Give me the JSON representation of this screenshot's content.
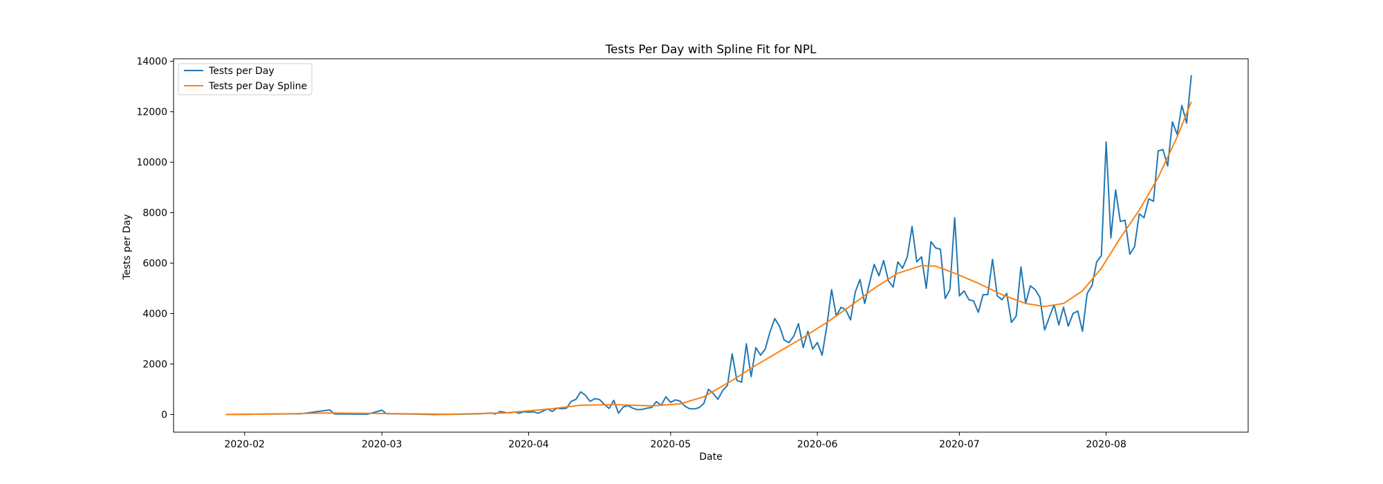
{
  "chart_data": {
    "type": "line",
    "title": "Tests Per Day with Spline Fit for NPL",
    "xlabel": "Date",
    "ylabel": "Tests per Day",
    "x_axis_type": "date",
    "xlim": [
      "2020-01-17",
      "2020-08-31"
    ],
    "ylim": [
      -700,
      14100
    ],
    "x_ticks": [
      "2020-02",
      "2020-03",
      "2020-04",
      "2020-05",
      "2020-06",
      "2020-07",
      "2020-08"
    ],
    "y_ticks": [
      0,
      2000,
      4000,
      6000,
      8000,
      10000,
      12000,
      14000
    ],
    "grid": false,
    "legend": {
      "position": "top-left"
    },
    "series": [
      {
        "name": "Tests per Day",
        "color": "#1f77b4",
        "points": [
          [
            "2020-01-28",
            0
          ],
          [
            "2020-02-13",
            30
          ],
          [
            "2020-02-19",
            180
          ],
          [
            "2020-02-20",
            20
          ],
          [
            "2020-02-27",
            10
          ],
          [
            "2020-03-01",
            170
          ],
          [
            "2020-03-02",
            30
          ],
          [
            "2020-03-07",
            20
          ],
          [
            "2020-03-12",
            0
          ],
          [
            "2020-03-17",
            10
          ],
          [
            "2020-03-22",
            30
          ],
          [
            "2020-03-24",
            60
          ],
          [
            "2020-03-25",
            20
          ],
          [
            "2020-03-26",
            120
          ],
          [
            "2020-03-27",
            80
          ],
          [
            "2020-03-28",
            60
          ],
          [
            "2020-03-29",
            100
          ],
          [
            "2020-03-30",
            50
          ],
          [
            "2020-03-31",
            110
          ],
          [
            "2020-04-01",
            90
          ],
          [
            "2020-04-02",
            110
          ],
          [
            "2020-04-03",
            50
          ],
          [
            "2020-04-04",
            130
          ],
          [
            "2020-04-05",
            220
          ],
          [
            "2020-04-06",
            120
          ],
          [
            "2020-04-07",
            250
          ],
          [
            "2020-04-08",
            230
          ],
          [
            "2020-04-09",
            250
          ],
          [
            "2020-04-10",
            520
          ],
          [
            "2020-04-11",
            600
          ],
          [
            "2020-04-12",
            900
          ],
          [
            "2020-04-13",
            760
          ],
          [
            "2020-04-14",
            520
          ],
          [
            "2020-04-15",
            630
          ],
          [
            "2020-04-16",
            590
          ],
          [
            "2020-04-17",
            400
          ],
          [
            "2020-04-18",
            240
          ],
          [
            "2020-04-19",
            560
          ],
          [
            "2020-04-20",
            50
          ],
          [
            "2020-04-21",
            300
          ],
          [
            "2020-04-22",
            350
          ],
          [
            "2020-04-23",
            250
          ],
          [
            "2020-04-24",
            190
          ],
          [
            "2020-04-25",
            200
          ],
          [
            "2020-04-26",
            250
          ],
          [
            "2020-04-27",
            280
          ],
          [
            "2020-04-28",
            510
          ],
          [
            "2020-04-29",
            360
          ],
          [
            "2020-04-30",
            700
          ],
          [
            "2020-05-01",
            480
          ],
          [
            "2020-05-02",
            580
          ],
          [
            "2020-05-03",
            530
          ],
          [
            "2020-05-04",
            330
          ],
          [
            "2020-05-05",
            230
          ],
          [
            "2020-05-06",
            220
          ],
          [
            "2020-05-07",
            270
          ],
          [
            "2020-05-08",
            430
          ],
          [
            "2020-05-09",
            1000
          ],
          [
            "2020-05-10",
            830
          ],
          [
            "2020-05-11",
            600
          ],
          [
            "2020-05-12",
            950
          ],
          [
            "2020-05-13",
            1150
          ],
          [
            "2020-05-14",
            2400
          ],
          [
            "2020-05-15",
            1350
          ],
          [
            "2020-05-16",
            1280
          ],
          [
            "2020-05-17",
            2800
          ],
          [
            "2020-05-18",
            1500
          ],
          [
            "2020-05-19",
            2650
          ],
          [
            "2020-05-20",
            2350
          ],
          [
            "2020-05-21",
            2600
          ],
          [
            "2020-05-22",
            3280
          ],
          [
            "2020-05-23",
            3800
          ],
          [
            "2020-05-24",
            3500
          ],
          [
            "2020-05-25",
            2950
          ],
          [
            "2020-05-26",
            2850
          ],
          [
            "2020-05-27",
            3100
          ],
          [
            "2020-05-28",
            3600
          ],
          [
            "2020-05-29",
            2650
          ],
          [
            "2020-05-30",
            3300
          ],
          [
            "2020-05-31",
            2600
          ],
          [
            "2020-06-01",
            2850
          ],
          [
            "2020-06-02",
            2350
          ],
          [
            "2020-06-03",
            3500
          ],
          [
            "2020-06-04",
            4950
          ],
          [
            "2020-06-05",
            3900
          ],
          [
            "2020-06-06",
            4250
          ],
          [
            "2020-06-07",
            4150
          ],
          [
            "2020-06-08",
            3750
          ],
          [
            "2020-06-09",
            4850
          ],
          [
            "2020-06-10",
            5350
          ],
          [
            "2020-06-11",
            4400
          ],
          [
            "2020-06-12",
            5200
          ],
          [
            "2020-06-13",
            5950
          ],
          [
            "2020-06-14",
            5500
          ],
          [
            "2020-06-15",
            6100
          ],
          [
            "2020-06-16",
            5300
          ],
          [
            "2020-06-17",
            5050
          ],
          [
            "2020-06-18",
            6050
          ],
          [
            "2020-06-19",
            5800
          ],
          [
            "2020-06-20",
            6250
          ],
          [
            "2020-06-21",
            7450
          ],
          [
            "2020-06-22",
            6050
          ],
          [
            "2020-06-23",
            6250
          ],
          [
            "2020-06-24",
            5000
          ],
          [
            "2020-06-25",
            6850
          ],
          [
            "2020-06-26",
            6600
          ],
          [
            "2020-06-27",
            6550
          ],
          [
            "2020-06-28",
            4600
          ],
          [
            "2020-06-29",
            4950
          ],
          [
            "2020-06-30",
            7800
          ],
          [
            "2020-07-01",
            4700
          ],
          [
            "2020-07-02",
            4900
          ],
          [
            "2020-07-03",
            4550
          ],
          [
            "2020-07-04",
            4500
          ],
          [
            "2020-07-05",
            4050
          ],
          [
            "2020-07-06",
            4750
          ],
          [
            "2020-07-07",
            4750
          ],
          [
            "2020-07-08",
            6150
          ],
          [
            "2020-07-09",
            4700
          ],
          [
            "2020-07-10",
            4550
          ],
          [
            "2020-07-11",
            4800
          ],
          [
            "2020-07-12",
            3650
          ],
          [
            "2020-07-13",
            3900
          ],
          [
            "2020-07-14",
            5850
          ],
          [
            "2020-07-15",
            4400
          ],
          [
            "2020-07-16",
            5100
          ],
          [
            "2020-07-17",
            4950
          ],
          [
            "2020-07-18",
            4650
          ],
          [
            "2020-07-19",
            3350
          ],
          [
            "2020-07-20",
            3850
          ],
          [
            "2020-07-21",
            4350
          ],
          [
            "2020-07-22",
            3550
          ],
          [
            "2020-07-23",
            4250
          ],
          [
            "2020-07-24",
            3500
          ],
          [
            "2020-07-25",
            4000
          ],
          [
            "2020-07-26",
            4100
          ],
          [
            "2020-07-27",
            3300
          ],
          [
            "2020-07-28",
            4800
          ],
          [
            "2020-07-29",
            5100
          ],
          [
            "2020-07-30",
            6050
          ],
          [
            "2020-07-31",
            6300
          ],
          [
            "2020-08-01",
            10800
          ],
          [
            "2020-08-02",
            7000
          ],
          [
            "2020-08-03",
            8900
          ],
          [
            "2020-08-04",
            7650
          ],
          [
            "2020-08-05",
            7700
          ],
          [
            "2020-08-06",
            6350
          ],
          [
            "2020-08-07",
            6650
          ],
          [
            "2020-08-08",
            7950
          ],
          [
            "2020-08-09",
            7800
          ],
          [
            "2020-08-10",
            8550
          ],
          [
            "2020-08-11",
            8450
          ],
          [
            "2020-08-12",
            10450
          ],
          [
            "2020-08-13",
            10500
          ],
          [
            "2020-08-14",
            9850
          ],
          [
            "2020-08-15",
            11600
          ],
          [
            "2020-08-16",
            11100
          ],
          [
            "2020-08-17",
            12250
          ],
          [
            "2020-08-18",
            11550
          ],
          [
            "2020-08-19",
            13450
          ]
        ]
      },
      {
        "name": "Tests per Day Spline",
        "color": "#ff7f0e",
        "points": [
          [
            "2020-01-28",
            0
          ],
          [
            "2020-02-07",
            20
          ],
          [
            "2020-02-19",
            60
          ],
          [
            "2020-03-01",
            40
          ],
          [
            "2020-03-15",
            10
          ],
          [
            "2020-03-27",
            60
          ],
          [
            "2020-04-06",
            230
          ],
          [
            "2020-04-12",
            370
          ],
          [
            "2020-04-19",
            390
          ],
          [
            "2020-04-27",
            340
          ],
          [
            "2020-05-03",
            420
          ],
          [
            "2020-05-08",
            700
          ],
          [
            "2020-05-14",
            1350
          ],
          [
            "2020-05-19",
            1950
          ],
          [
            "2020-05-24",
            2500
          ],
          [
            "2020-05-29",
            3050
          ],
          [
            "2020-06-03",
            3650
          ],
          [
            "2020-06-08",
            4300
          ],
          [
            "2020-06-13",
            5000
          ],
          [
            "2020-06-18",
            5600
          ],
          [
            "2020-06-23",
            5900
          ],
          [
            "2020-06-26",
            5880
          ],
          [
            "2020-06-30",
            5600
          ],
          [
            "2020-07-05",
            5200
          ],
          [
            "2020-07-10",
            4750
          ],
          [
            "2020-07-15",
            4400
          ],
          [
            "2020-07-19",
            4280
          ],
          [
            "2020-07-23",
            4400
          ],
          [
            "2020-07-27",
            4900
          ],
          [
            "2020-07-31",
            5800
          ],
          [
            "2020-08-04",
            7000
          ],
          [
            "2020-08-08",
            8100
          ],
          [
            "2020-08-12",
            9400
          ],
          [
            "2020-08-16",
            11000
          ],
          [
            "2020-08-19",
            12400
          ]
        ]
      }
    ]
  }
}
